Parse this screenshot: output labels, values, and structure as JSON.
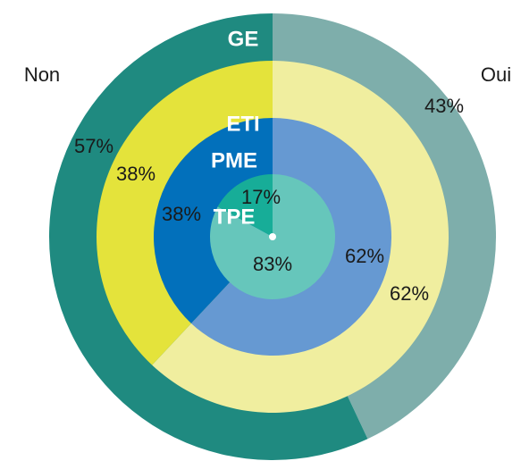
{
  "chart_data": {
    "type": "nested-donut",
    "categories": [
      "Non",
      "Oui"
    ],
    "series": [
      {
        "name": "GE",
        "colors": [
          "#1f8a80",
          "#7eaeab"
        ],
        "values": [
          57,
          43
        ],
        "value_labels": [
          "57%",
          "43%"
        ]
      },
      {
        "name": "ETI",
        "colors": [
          "#e4e33b",
          "#f0ee9f"
        ],
        "values": [
          38,
          62
        ],
        "value_labels": [
          "38%",
          "62%"
        ]
      },
      {
        "name": "PME",
        "colors": [
          "#0270bb",
          "#6699d2"
        ],
        "values": [
          38,
          62
        ],
        "value_labels": [
          "38%",
          "62%"
        ]
      },
      {
        "name": "TPE",
        "colors": [
          "#17ad98",
          "#66c6bb"
        ],
        "values": [
          17,
          83
        ],
        "value_labels": [
          "17%",
          "83%"
        ]
      }
    ]
  }
}
